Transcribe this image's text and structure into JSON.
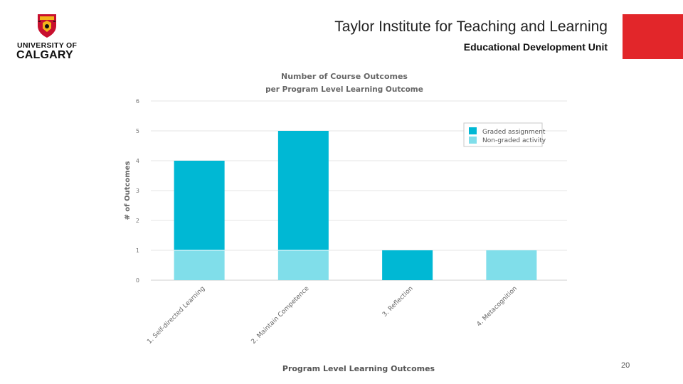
{
  "header": {
    "logo_line1": "UNIVERSITY OF",
    "logo_line2": "CALGARY",
    "institute_title": "Taylor Institute for Teaching and Learning",
    "unit_title": "Educational Development Unit"
  },
  "colors": {
    "accent_red": "#e2262a",
    "crest_red": "#c8102e",
    "crest_gold": "#f2b31b",
    "graded": "#00b8d4",
    "non_graded": "#80deea"
  },
  "footer": {
    "page_number": "20"
  },
  "chart_data": {
    "type": "bar",
    "stacked": true,
    "title": "Number of Course Outcomes",
    "subtitle": "per Program Level Learning Outcome",
    "xlabel": "Program Level Learning Outcomes",
    "ylabel": "# of Outcomes",
    "ylim": [
      0,
      6
    ],
    "yticks": [
      "0",
      "1",
      "2",
      "3",
      "4",
      "5",
      "6"
    ],
    "grid": true,
    "legend_position": "top-right",
    "categories": [
      "1. Self-directed Learning",
      "2. Maintain Competence",
      "3. Reflection",
      "4. Metacognition"
    ],
    "series": [
      {
        "name": "Non-graded activity",
        "values": [
          1,
          1,
          0,
          1
        ]
      },
      {
        "name": "Graded assignment",
        "values": [
          3,
          4,
          1,
          0
        ]
      }
    ]
  }
}
